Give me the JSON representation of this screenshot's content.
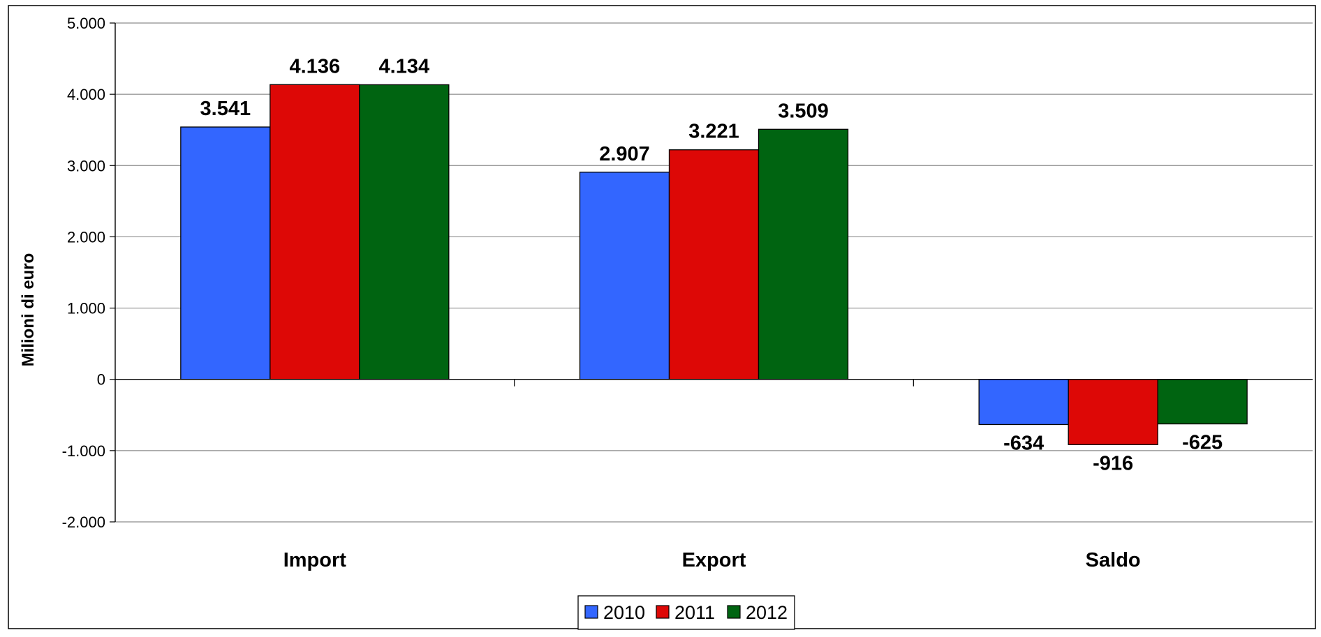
{
  "chart_data": {
    "type": "bar",
    "categories": [
      "Import",
      "Export",
      "Saldo"
    ],
    "series": [
      {
        "name": "2010",
        "color": "#3366FF",
        "values": [
          3541,
          2907,
          -634
        ],
        "labels": [
          "3.541",
          "2.907",
          "-634"
        ]
      },
      {
        "name": "2011",
        "color": "#DD0806",
        "values": [
          4136,
          3221,
          -916
        ],
        "labels": [
          "4.136",
          "3.221",
          "-916"
        ]
      },
      {
        "name": "2012",
        "color": "#006411",
        "values": [
          4134,
          3509,
          -625
        ],
        "labels": [
          "4.134",
          "3.509",
          "-625"
        ]
      }
    ],
    "ylabel": "Milioni di euro",
    "xlabel": "",
    "title": "",
    "ylim": [
      -2000,
      5000
    ],
    "yticks": [
      5000,
      4000,
      3000,
      2000,
      1000,
      0,
      -1000,
      -2000
    ],
    "ytick_labels": [
      "5.000",
      "4.000",
      "3.000",
      "2.000",
      "1.000",
      "0",
      "-1.000",
      "-2.000"
    ],
    "grid": true,
    "legend_position": "bottom"
  }
}
